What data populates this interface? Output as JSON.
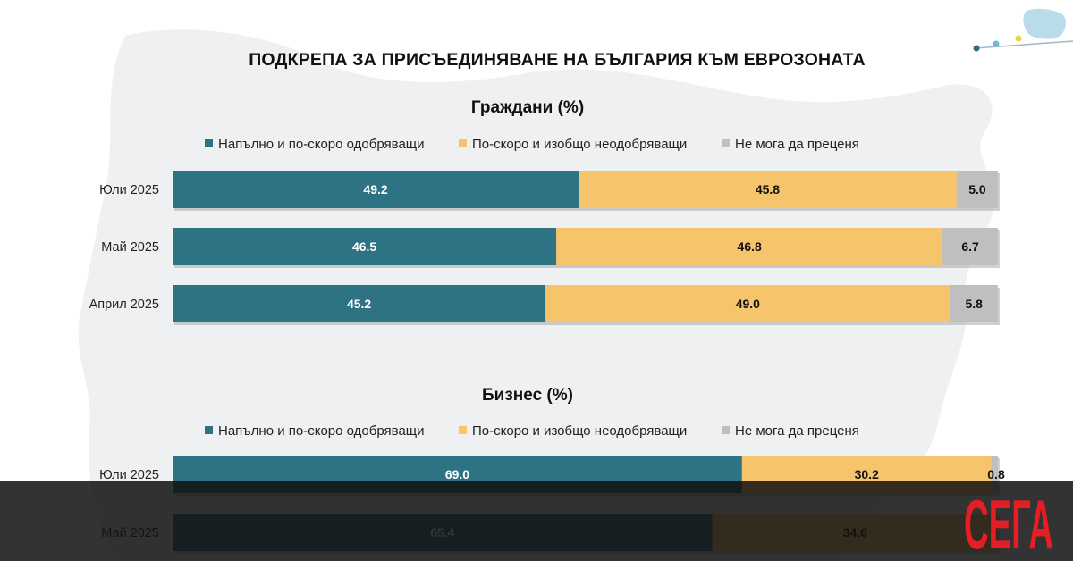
{
  "title": "ПОДКРЕПА ЗА ПРИСЪЕДИНЯВАНЕ НА БЪЛГАРИЯ КЪМ ЕВРОЗОНАТА",
  "logo": {
    "text": "СЕГА"
  },
  "colors": {
    "approve": "#2e7384",
    "disapprove": "#f6c56b",
    "unsure": "#bfbfbf"
  },
  "chart_data": [
    {
      "type": "bar",
      "orientation": "horizontal",
      "stacked": true,
      "title": "Граждани (%)",
      "legend_position": "top",
      "categories": [
        "Юли 2025",
        "Май 2025",
        "Април 2025"
      ],
      "series": [
        {
          "name": "Напълно и по-скоро одобряващи",
          "values": [
            49.2,
            46.5,
            45.2
          ]
        },
        {
          "name": "По-скоро и изобщо неодобряващи",
          "values": [
            45.8,
            46.8,
            49.0
          ]
        },
        {
          "name": "Не мога да преценя",
          "values": [
            5.0,
            6.7,
            5.8
          ]
        }
      ],
      "labels": [
        [
          "49.2",
          "45.8",
          "5.0"
        ],
        [
          "46.5",
          "46.8",
          "6.7"
        ],
        [
          "45.2",
          "49.0",
          "5.8"
        ]
      ],
      "xlim": [
        0,
        100
      ]
    },
    {
      "type": "bar",
      "orientation": "horizontal",
      "stacked": true,
      "title": "Бизнес (%)",
      "legend_position": "top",
      "categories": [
        "Юли 2025",
        "Май 2025"
      ],
      "series": [
        {
          "name": "Напълно и по-скоро одобряващи",
          "values": [
            69.0,
            65.4
          ]
        },
        {
          "name": "По-скоро и изобщо неодобряващи",
          "values": [
            30.2,
            34.6
          ]
        },
        {
          "name": "Не мога да преценя",
          "values": [
            0.8,
            0.0
          ]
        }
      ],
      "labels": [
        [
          "69.0",
          "30.2",
          "0.8"
        ],
        [
          "65.4",
          "34.6",
          ""
        ]
      ],
      "xlim": [
        0,
        100
      ]
    }
  ]
}
